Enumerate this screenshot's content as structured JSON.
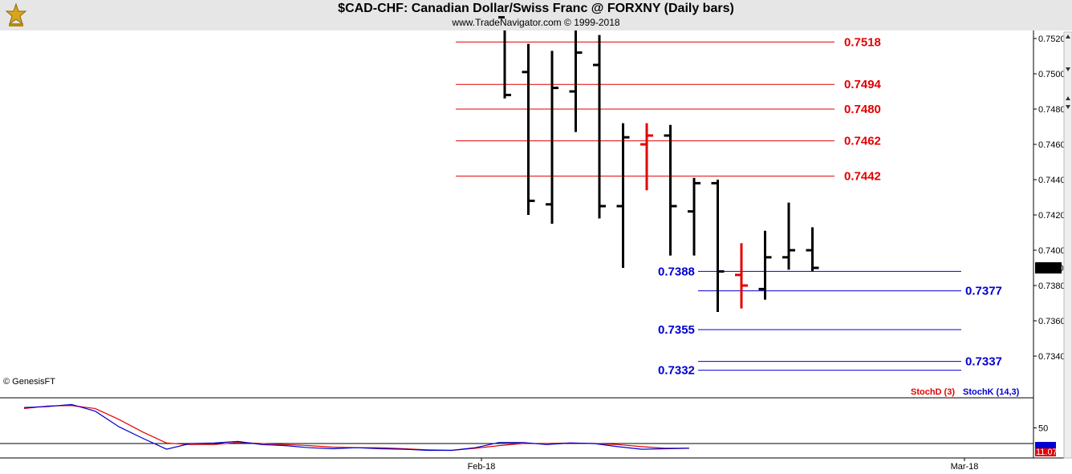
{
  "header": {
    "title": "$CAD-CHF:  Canadian Dollar/Swiss Franc @ FORXNY  (Daily bars)",
    "subtitle": "www.TradeNavigator.com © 1999-2018"
  },
  "copyright": "© GenesisFT",
  "colors": {
    "up_bar": "#000000",
    "down_bar": "#e30000",
    "resistance": "#e30000",
    "support": "#0000d0",
    "stoch_d": "#e30000",
    "stoch_k": "#0000d0"
  },
  "chart_data": [
    {
      "type": "ohlc",
      "ylim": [
        0.7318,
        0.7525
      ],
      "y_ticks": [
        "0.7520",
        "0.7500",
        "0.7480",
        "0.7460",
        "0.7440",
        "0.7420",
        "0.7400",
        "0.7380",
        "0.7360",
        "0.7340"
      ],
      "x_labels": [
        "Feb-18",
        "Mar-18"
      ],
      "last_price": "0.7390",
      "bars": [
        {
          "o": 0.7532,
          "h": 0.7532,
          "l": 0.7486,
          "c": 0.7488,
          "color": "black"
        },
        {
          "o": 0.7501,
          "h": 0.7517,
          "l": 0.742,
          "c": 0.7428,
          "color": "black"
        },
        {
          "o": 0.7426,
          "h": 0.7513,
          "l": 0.7415,
          "c": 0.7492,
          "color": "black"
        },
        {
          "o": 0.749,
          "h": 0.7525,
          "l": 0.7467,
          "c": 0.7512,
          "color": "black"
        },
        {
          "o": 0.7505,
          "h": 0.7522,
          "l": 0.7418,
          "c": 0.7425,
          "color": "black"
        },
        {
          "o": 0.7425,
          "h": 0.7472,
          "l": 0.739,
          "c": 0.7464,
          "color": "black"
        },
        {
          "o": 0.746,
          "h": 0.7472,
          "l": 0.7434,
          "c": 0.7465,
          "color": "red"
        },
        {
          "o": 0.7465,
          "h": 0.7471,
          "l": 0.7397,
          "c": 0.7425,
          "color": "black"
        },
        {
          "o": 0.7422,
          "h": 0.7441,
          "l": 0.7397,
          "c": 0.7438,
          "color": "black"
        },
        {
          "o": 0.7438,
          "h": 0.744,
          "l": 0.7365,
          "c": 0.7388,
          "color": "black"
        },
        {
          "o": 0.7386,
          "h": 0.7404,
          "l": 0.7367,
          "c": 0.738,
          "color": "red"
        },
        {
          "o": 0.7378,
          "h": 0.7411,
          "l": 0.7372,
          "c": 0.7396,
          "color": "black"
        },
        {
          "o": 0.7396,
          "h": 0.7427,
          "l": 0.7389,
          "c": 0.74,
          "color": "black"
        },
        {
          "o": 0.74,
          "h": 0.7413,
          "l": 0.7388,
          "c": 0.739,
          "color": "black"
        }
      ],
      "resistance_levels": [
        "0.7518",
        "0.7494",
        "0.7480",
        "0.7462",
        "0.7442"
      ],
      "support_levels": [
        {
          "value": "0.7388",
          "label_side": "left"
        },
        {
          "value": "0.7377",
          "label_side": "right"
        },
        {
          "value": "0.7355",
          "label_side": "left"
        },
        {
          "value": "0.7337",
          "label_side": "right"
        },
        {
          "value": "0.7332",
          "label_side": "left"
        }
      ]
    },
    {
      "type": "line",
      "ylim": [
        0,
        100
      ],
      "y_tick": "50",
      "overbought": 80,
      "oversold": 20,
      "last_value": "11.07",
      "series": [
        {
          "name": "StochD (3)",
          "values": [
            87,
            92,
            93,
            87,
            66,
            42,
            21,
            18,
            18,
            22,
            20,
            18,
            16,
            13,
            12,
            12,
            10,
            8,
            7,
            11,
            16,
            20,
            20,
            21,
            20,
            18,
            14,
            11,
            11
          ]
        },
        {
          "name": "StochK (14,3)",
          "values": [
            89,
            91,
            95,
            82,
            52,
            30,
            9,
            20,
            21,
            24,
            18,
            16,
            12,
            10,
            12,
            10,
            9,
            7,
            7,
            12,
            22,
            22,
            18,
            21,
            20,
            14,
            9,
            10,
            11
          ]
        }
      ]
    }
  ]
}
